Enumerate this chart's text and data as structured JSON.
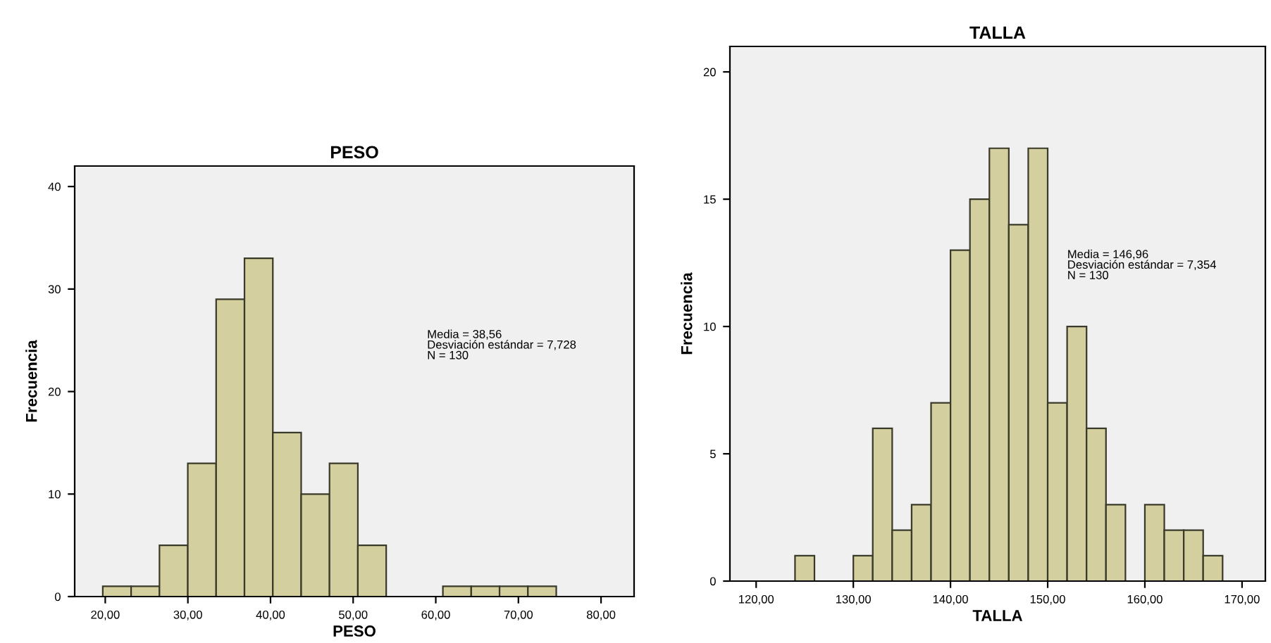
{
  "chart_data": [
    {
      "type": "histogram",
      "title": "PESO",
      "xlabel": "PESO",
      "ylabel": "Frecuencia",
      "color": "#d4cf9e",
      "bins": [
        19.7,
        23.13,
        26.56,
        29.99,
        33.42,
        36.85,
        40.28,
        43.71,
        47.14,
        50.57,
        54.0,
        57.43,
        60.86,
        64.29,
        67.72,
        71.15,
        74.58
      ],
      "values": [
        1,
        1,
        5,
        13,
        29,
        33,
        16,
        10,
        13,
        5,
        0,
        0,
        1,
        1,
        1,
        1
      ],
      "xlim": [
        16.3,
        84
      ],
      "ylim": [
        0,
        42
      ],
      "xticks": [
        {
          "value": 20,
          "label": "20,00"
        },
        {
          "value": 30,
          "label": "30,00"
        },
        {
          "value": 40,
          "label": "40,00"
        },
        {
          "value": 50,
          "label": "50,00"
        },
        {
          "value": 60,
          "label": "60,00"
        },
        {
          "value": 70,
          "label": "70,00"
        },
        {
          "value": 80,
          "label": "80,00"
        }
      ],
      "yticks": [
        0,
        10,
        20,
        30,
        40
      ],
      "grid": false,
      "annotations": [
        "Media = 38,56\nDesviación estándar = 7,728\nN = 130"
      ]
    },
    {
      "type": "histogram",
      "title": "TALLA",
      "xlabel": "TALLA",
      "ylabel": "Frecuencia",
      "color": "#d4cf9e",
      "bins": [
        124,
        126,
        128,
        130,
        132,
        134,
        136,
        138,
        140,
        142,
        144,
        146,
        148,
        150,
        152,
        154,
        156,
        158,
        160,
        162,
        164,
        166,
        168
      ],
      "values": [
        1,
        0,
        0,
        1,
        6,
        2,
        3,
        7,
        13,
        15,
        17,
        14,
        17,
        7,
        10,
        6,
        3,
        0,
        3,
        2,
        2,
        1
      ],
      "xlim": [
        117.3,
        172.4
      ],
      "ylim": [
        0,
        21
      ],
      "xticks": [
        {
          "value": 120,
          "label": "120,00"
        },
        {
          "value": 130,
          "label": "130,00"
        },
        {
          "value": 140,
          "label": "140,00"
        },
        {
          "value": 150,
          "label": "150,00"
        },
        {
          "value": 160,
          "label": "160,00"
        },
        {
          "value": 170,
          "label": "170,00"
        }
      ],
      "yticks": [
        0,
        5,
        10,
        15,
        20
      ],
      "grid": false,
      "annotations": [
        "Media = 146,96\nDesviación estándar = 7,354\nN = 130"
      ]
    }
  ]
}
